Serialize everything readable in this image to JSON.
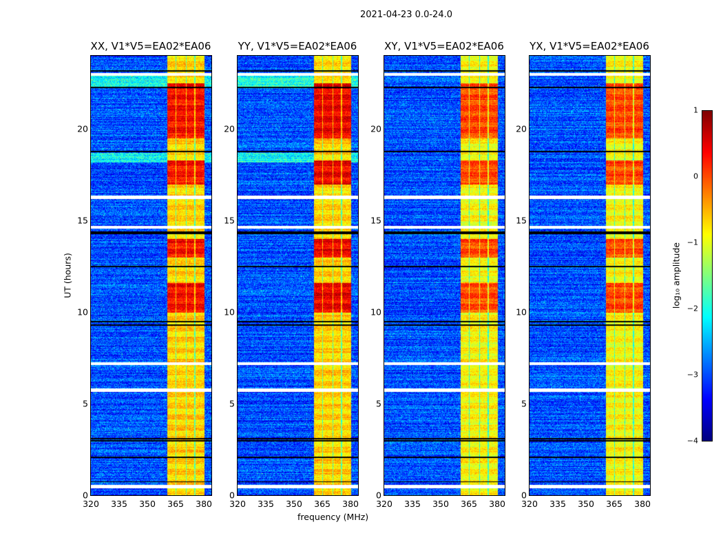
{
  "suptitle": "2021-04-23 0.0-24.0",
  "chart_data": {
    "type": "heatmap",
    "title": "2021-04-23 0.0-24.0",
    "xlabel": "frequency (MHz)",
    "ylabel": "UT (hours)",
    "xlim": [
      320,
      384
    ],
    "ylim": [
      0,
      24
    ],
    "xticks": [
      "320",
      "335",
      "350",
      "365",
      "380"
    ],
    "yticks": [
      "0",
      "5",
      "10",
      "15",
      "20"
    ],
    "panels": [
      {
        "title": "XX, V1*V5=EA02*EA06",
        "band_level": -0.7,
        "peak_level": 0.3
      },
      {
        "title": "YY, V1*V5=EA02*EA06",
        "band_level": -0.7,
        "peak_level": 0.4
      },
      {
        "title": "XY, V1*V5=EA02*EA06",
        "band_level": -0.9,
        "peak_level": 0.0
      },
      {
        "title": "YX, V1*V5=EA02*EA06",
        "band_level": -0.9,
        "peak_level": 0.0
      }
    ],
    "background_level": -3.0,
    "high_amplitude_band_mhz": [
      360.5,
      380
    ],
    "strong_periods_hours": [
      [
        19.5,
        22.5
      ],
      [
        10.0,
        11.6
      ],
      [
        17.0,
        18.3
      ],
      [
        13.0,
        14.0
      ]
    ],
    "flagged_rows_hours": [
      0.5,
      5.75,
      7.2,
      14.65,
      16.3,
      23.0
    ],
    "gap_rows_hours": [
      0.75,
      2.1,
      3.0,
      3.1,
      9.3,
      9.5,
      12.5,
      14.3,
      14.4,
      18.8,
      22.3,
      23.2
    ],
    "colorbar": {
      "label": "log₁₀ amplitude",
      "range": [
        -4,
        1
      ],
      "ticks": [
        "1",
        "0",
        "−1",
        "−2",
        "−3",
        "−4"
      ],
      "colormap": "jet"
    }
  }
}
